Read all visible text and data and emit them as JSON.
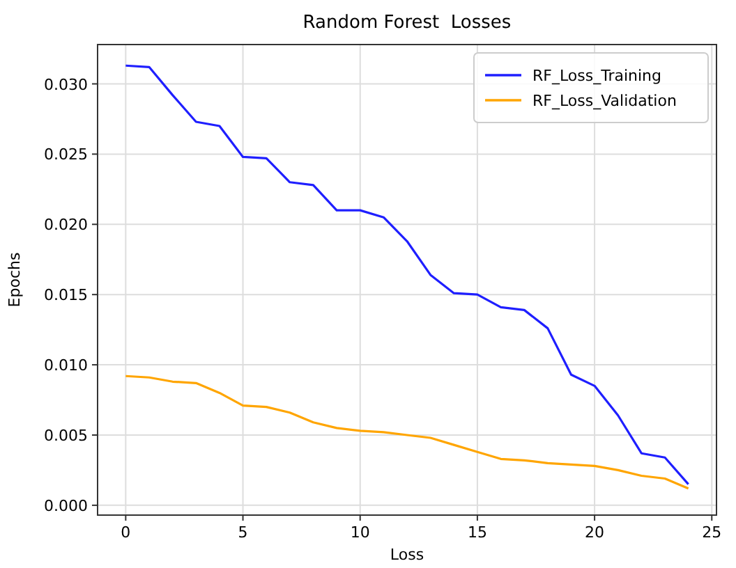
{
  "chart_data": {
    "type": "line",
    "title": "Random Forest  Losses",
    "xlabel": "Loss",
    "ylabel": "Epochs",
    "x": [
      0,
      1,
      2,
      3,
      4,
      5,
      6,
      7,
      8,
      9,
      10,
      11,
      12,
      13,
      14,
      15,
      16,
      17,
      18,
      19,
      20,
      21,
      22,
      23,
      24
    ],
    "series": [
      {
        "name": "RF_Loss_Training",
        "color": "#1f1fff",
        "values": [
          0.0313,
          0.0312,
          0.0292,
          0.0273,
          0.027,
          0.0248,
          0.0247,
          0.023,
          0.0228,
          0.021,
          0.021,
          0.0205,
          0.0188,
          0.0164,
          0.0151,
          0.015,
          0.0141,
          0.0139,
          0.0126,
          0.0093,
          0.0085,
          0.0064,
          0.0037,
          0.0034,
          0.0015
        ]
      },
      {
        "name": "RF_Loss_Validation",
        "color": "#ffa500",
        "values": [
          0.0092,
          0.0091,
          0.0088,
          0.0087,
          0.008,
          0.0071,
          0.007,
          0.0066,
          0.0059,
          0.0055,
          0.0053,
          0.0052,
          0.005,
          0.0048,
          0.0043,
          0.0038,
          0.0033,
          0.0032,
          0.003,
          0.0029,
          0.0028,
          0.0025,
          0.0021,
          0.0019,
          0.0012
        ]
      }
    ],
    "xlim": [
      -1.2,
      25.2
    ],
    "xticks": [
      0,
      5,
      10,
      15,
      20,
      25
    ],
    "ylim": [
      -0.0007,
      0.0328
    ],
    "yticks": [
      {
        "value": 0,
        "label": "0.000"
      },
      {
        "value": 0.005,
        "label": "0.005"
      },
      {
        "value": 0.01,
        "label": "0.010"
      },
      {
        "value": 0.015,
        "label": "0.015"
      },
      {
        "value": 0.02,
        "label": "0.020"
      },
      {
        "value": 0.025,
        "label": "0.025"
      },
      {
        "value": 0.03,
        "label": "0.030"
      }
    ],
    "grid": true,
    "legend": "top right",
    "marker": "none",
    "line_style": "solid"
  }
}
